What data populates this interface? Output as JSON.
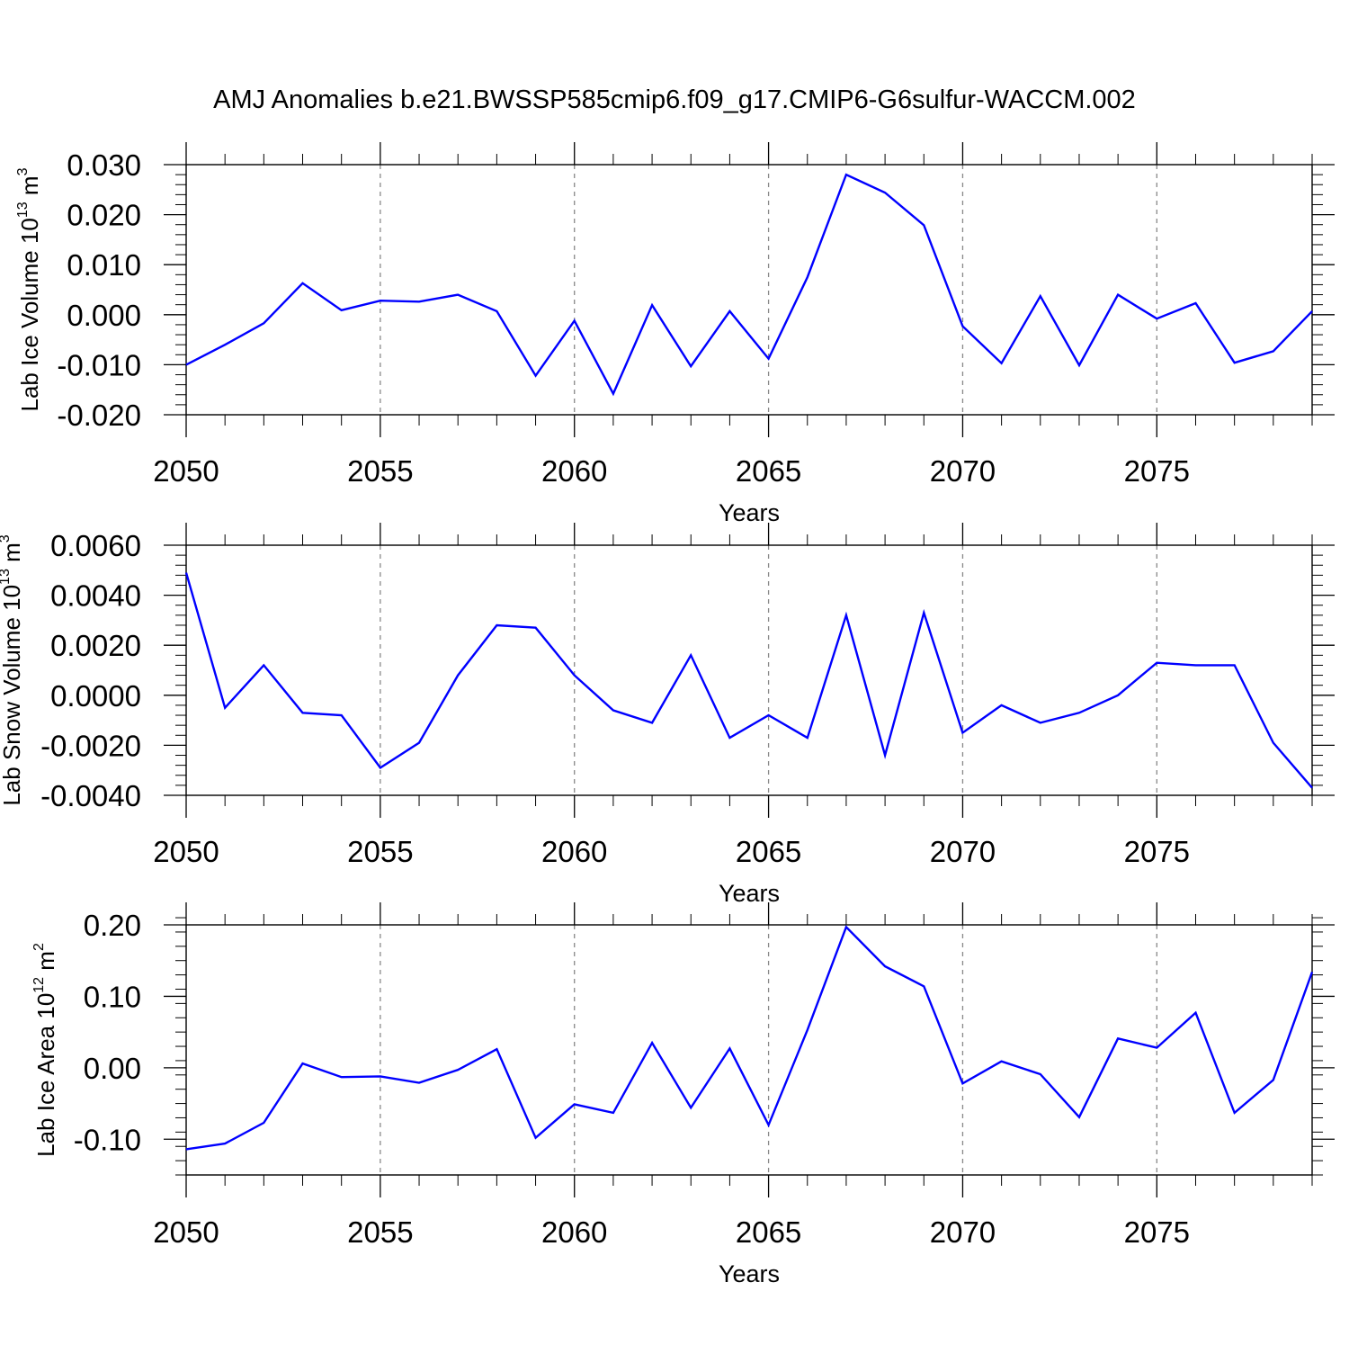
{
  "figure_title": "AMJ Anomalies b.e21.BWSSP585cmip6.f09_g17.CMIP6-G6sulfur-WACCM.002",
  "colors": {
    "series": "#0000ff",
    "axis": "#000000",
    "gridline": "#888888",
    "background": "#ffffff"
  },
  "chart_data": [
    {
      "type": "line",
      "title": "AMJ Anomalies b.e21.BWSSP585cmip6.f09_g17.CMIP6-G6sulfur-WACCM.002",
      "xlabel": "Years",
      "ylabel": {
        "main": "Lab Ice Volume 10",
        "exp": "13",
        "unit": " m",
        "unit_exp": "3"
      },
      "xlim": [
        2050,
        2079
      ],
      "ylim": [
        -0.02,
        0.03
      ],
      "x_ticks": [
        2050,
        2055,
        2060,
        2065,
        2070,
        2075
      ],
      "x_tick_labels": [
        "2050",
        "2055",
        "2060",
        "2065",
        "2070",
        "2075"
      ],
      "y_ticks": [
        -0.02,
        -0.01,
        0.0,
        0.01,
        0.02,
        0.03
      ],
      "y_tick_labels": [
        "-0.020",
        "-0.010",
        "0.000",
        "0.010",
        "0.020",
        "0.030"
      ],
      "grid": "vertical dashed at major x ticks",
      "series": [
        {
          "name": "Lab Ice Volume",
          "x": [
            2050,
            2051,
            2052,
            2053,
            2054,
            2055,
            2056,
            2057,
            2058,
            2059,
            2060,
            2061,
            2062,
            2063,
            2064,
            2065,
            2066,
            2067,
            2068,
            2069,
            2070,
            2071,
            2072,
            2073,
            2074,
            2075,
            2076,
            2077,
            2078,
            2079
          ],
          "y": [
            -0.01,
            -0.006,
            -0.0017,
            0.0063,
            0.0009,
            0.0028,
            0.0026,
            0.004,
            0.0007,
            -0.0122,
            -0.0012,
            -0.0158,
            0.0019,
            -0.0103,
            0.0007,
            -0.0088,
            0.0075,
            0.028,
            0.0244,
            0.0179,
            -0.0023,
            -0.0097,
            0.0037,
            -0.0101,
            0.004,
            -0.0008,
            0.0023,
            -0.0096,
            -0.0073,
            0.0007
          ]
        }
      ]
    },
    {
      "type": "line",
      "xlabel": "Years",
      "ylabel": {
        "main": "Lab Snow Volume 10",
        "exp": "13",
        "unit": " m",
        "unit_exp": "3"
      },
      "xlim": [
        2050,
        2079
      ],
      "ylim": [
        -0.004,
        0.006
      ],
      "x_ticks": [
        2050,
        2055,
        2060,
        2065,
        2070,
        2075
      ],
      "x_tick_labels": [
        "2050",
        "2055",
        "2060",
        "2065",
        "2070",
        "2075"
      ],
      "y_ticks": [
        -0.004,
        -0.002,
        0.0,
        0.002,
        0.004,
        0.006
      ],
      "y_tick_labels": [
        "-0.0040",
        "-0.0020",
        "0.0000",
        "0.0020",
        "0.0040",
        "0.0060"
      ],
      "grid": "vertical dashed at major x ticks",
      "series": [
        {
          "name": "Lab Snow Volume",
          "x": [
            2050,
            2051,
            2052,
            2053,
            2054,
            2055,
            2056,
            2057,
            2058,
            2059,
            2060,
            2061,
            2062,
            2063,
            2064,
            2065,
            2066,
            2067,
            2068,
            2069,
            2070,
            2071,
            2072,
            2073,
            2074,
            2075,
            2076,
            2077,
            2078,
            2079
          ],
          "y": [
            0.0049,
            -0.0005,
            0.0012,
            -0.0007,
            -0.0008,
            -0.0029,
            -0.0019,
            0.0008,
            0.0028,
            0.0027,
            0.0008,
            -0.0006,
            -0.0011,
            0.0016,
            -0.0017,
            -0.0008,
            -0.0017,
            0.0032,
            -0.0024,
            0.0033,
            -0.0015,
            -0.0004,
            -0.0011,
            -0.0007,
            0.0,
            0.0013,
            0.0012,
            0.0012,
            -0.0019,
            -0.0037
          ]
        }
      ]
    },
    {
      "type": "line",
      "xlabel": "Years",
      "ylabel": {
        "main": "Lab Ice Area 10",
        "exp": "12",
        "unit": " m",
        "unit_exp": "2"
      },
      "xlim": [
        2050,
        2079
      ],
      "ylim": [
        -0.15,
        0.2
      ],
      "x_ticks": [
        2050,
        2055,
        2060,
        2065,
        2070,
        2075
      ],
      "x_tick_labels": [
        "2050",
        "2055",
        "2060",
        "2065",
        "2070",
        "2075"
      ],
      "y_ticks": [
        -0.1,
        0.0,
        0.1,
        0.2
      ],
      "y_tick_labels": [
        "-0.10",
        "0.00",
        "0.10",
        "0.20"
      ],
      "grid": "vertical dashed at major x ticks",
      "series": [
        {
          "name": "Lab Ice Area",
          "x": [
            2050,
            2051,
            2052,
            2053,
            2054,
            2055,
            2056,
            2057,
            2058,
            2059,
            2060,
            2061,
            2062,
            2063,
            2064,
            2065,
            2066,
            2067,
            2068,
            2069,
            2070,
            2071,
            2072,
            2073,
            2074,
            2075,
            2076,
            2077,
            2078,
            2079
          ],
          "y": [
            -0.114,
            -0.106,
            -0.077,
            0.006,
            -0.013,
            -0.012,
            -0.021,
            -0.003,
            0.026,
            -0.098,
            -0.051,
            -0.063,
            0.035,
            -0.056,
            0.027,
            -0.08,
            0.053,
            0.197,
            0.142,
            0.114,
            -0.022,
            0.009,
            -0.009,
            -0.069,
            0.041,
            0.028,
            0.077,
            -0.063,
            -0.017,
            0.134
          ]
        }
      ]
    }
  ]
}
